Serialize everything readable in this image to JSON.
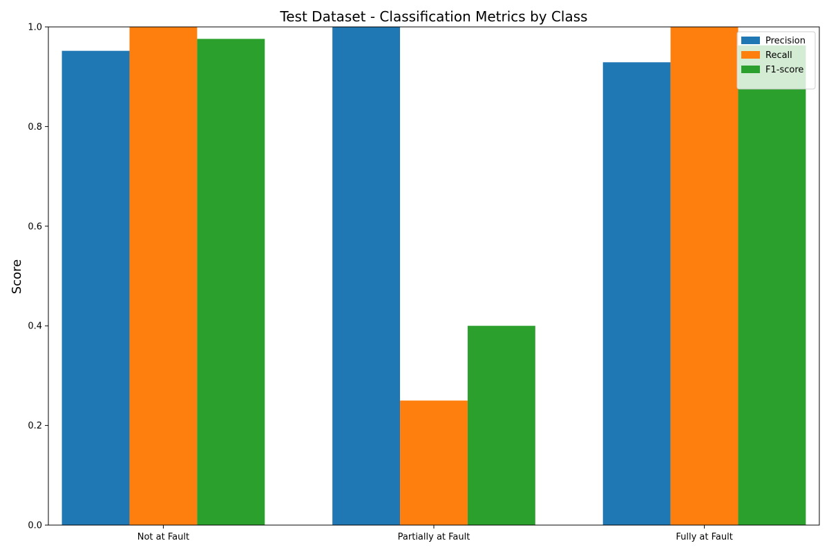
{
  "chart_data": {
    "type": "bar",
    "title": "Test Dataset - Classification Metrics by Class",
    "xlabel": "",
    "ylabel": "Score",
    "categories": [
      "Not at Fault",
      "Partially at Fault",
      "Fully at Fault"
    ],
    "series": [
      {
        "name": "Precision",
        "values": [
          0.952,
          1.0,
          0.929
        ],
        "color": "#1f77b4"
      },
      {
        "name": "Recall",
        "values": [
          1.0,
          0.25,
          1.0
        ],
        "color": "#ff7f0e"
      },
      {
        "name": "F1-score",
        "values": [
          0.976,
          0.4,
          0.963
        ],
        "color": "#2ca02c"
      }
    ],
    "ylim": [
      0,
      1.0
    ],
    "yticks": [
      "0.0",
      "0.2",
      "0.4",
      "0.6",
      "0.8",
      "1.0"
    ],
    "grid": false,
    "legend_position": "top-right"
  }
}
